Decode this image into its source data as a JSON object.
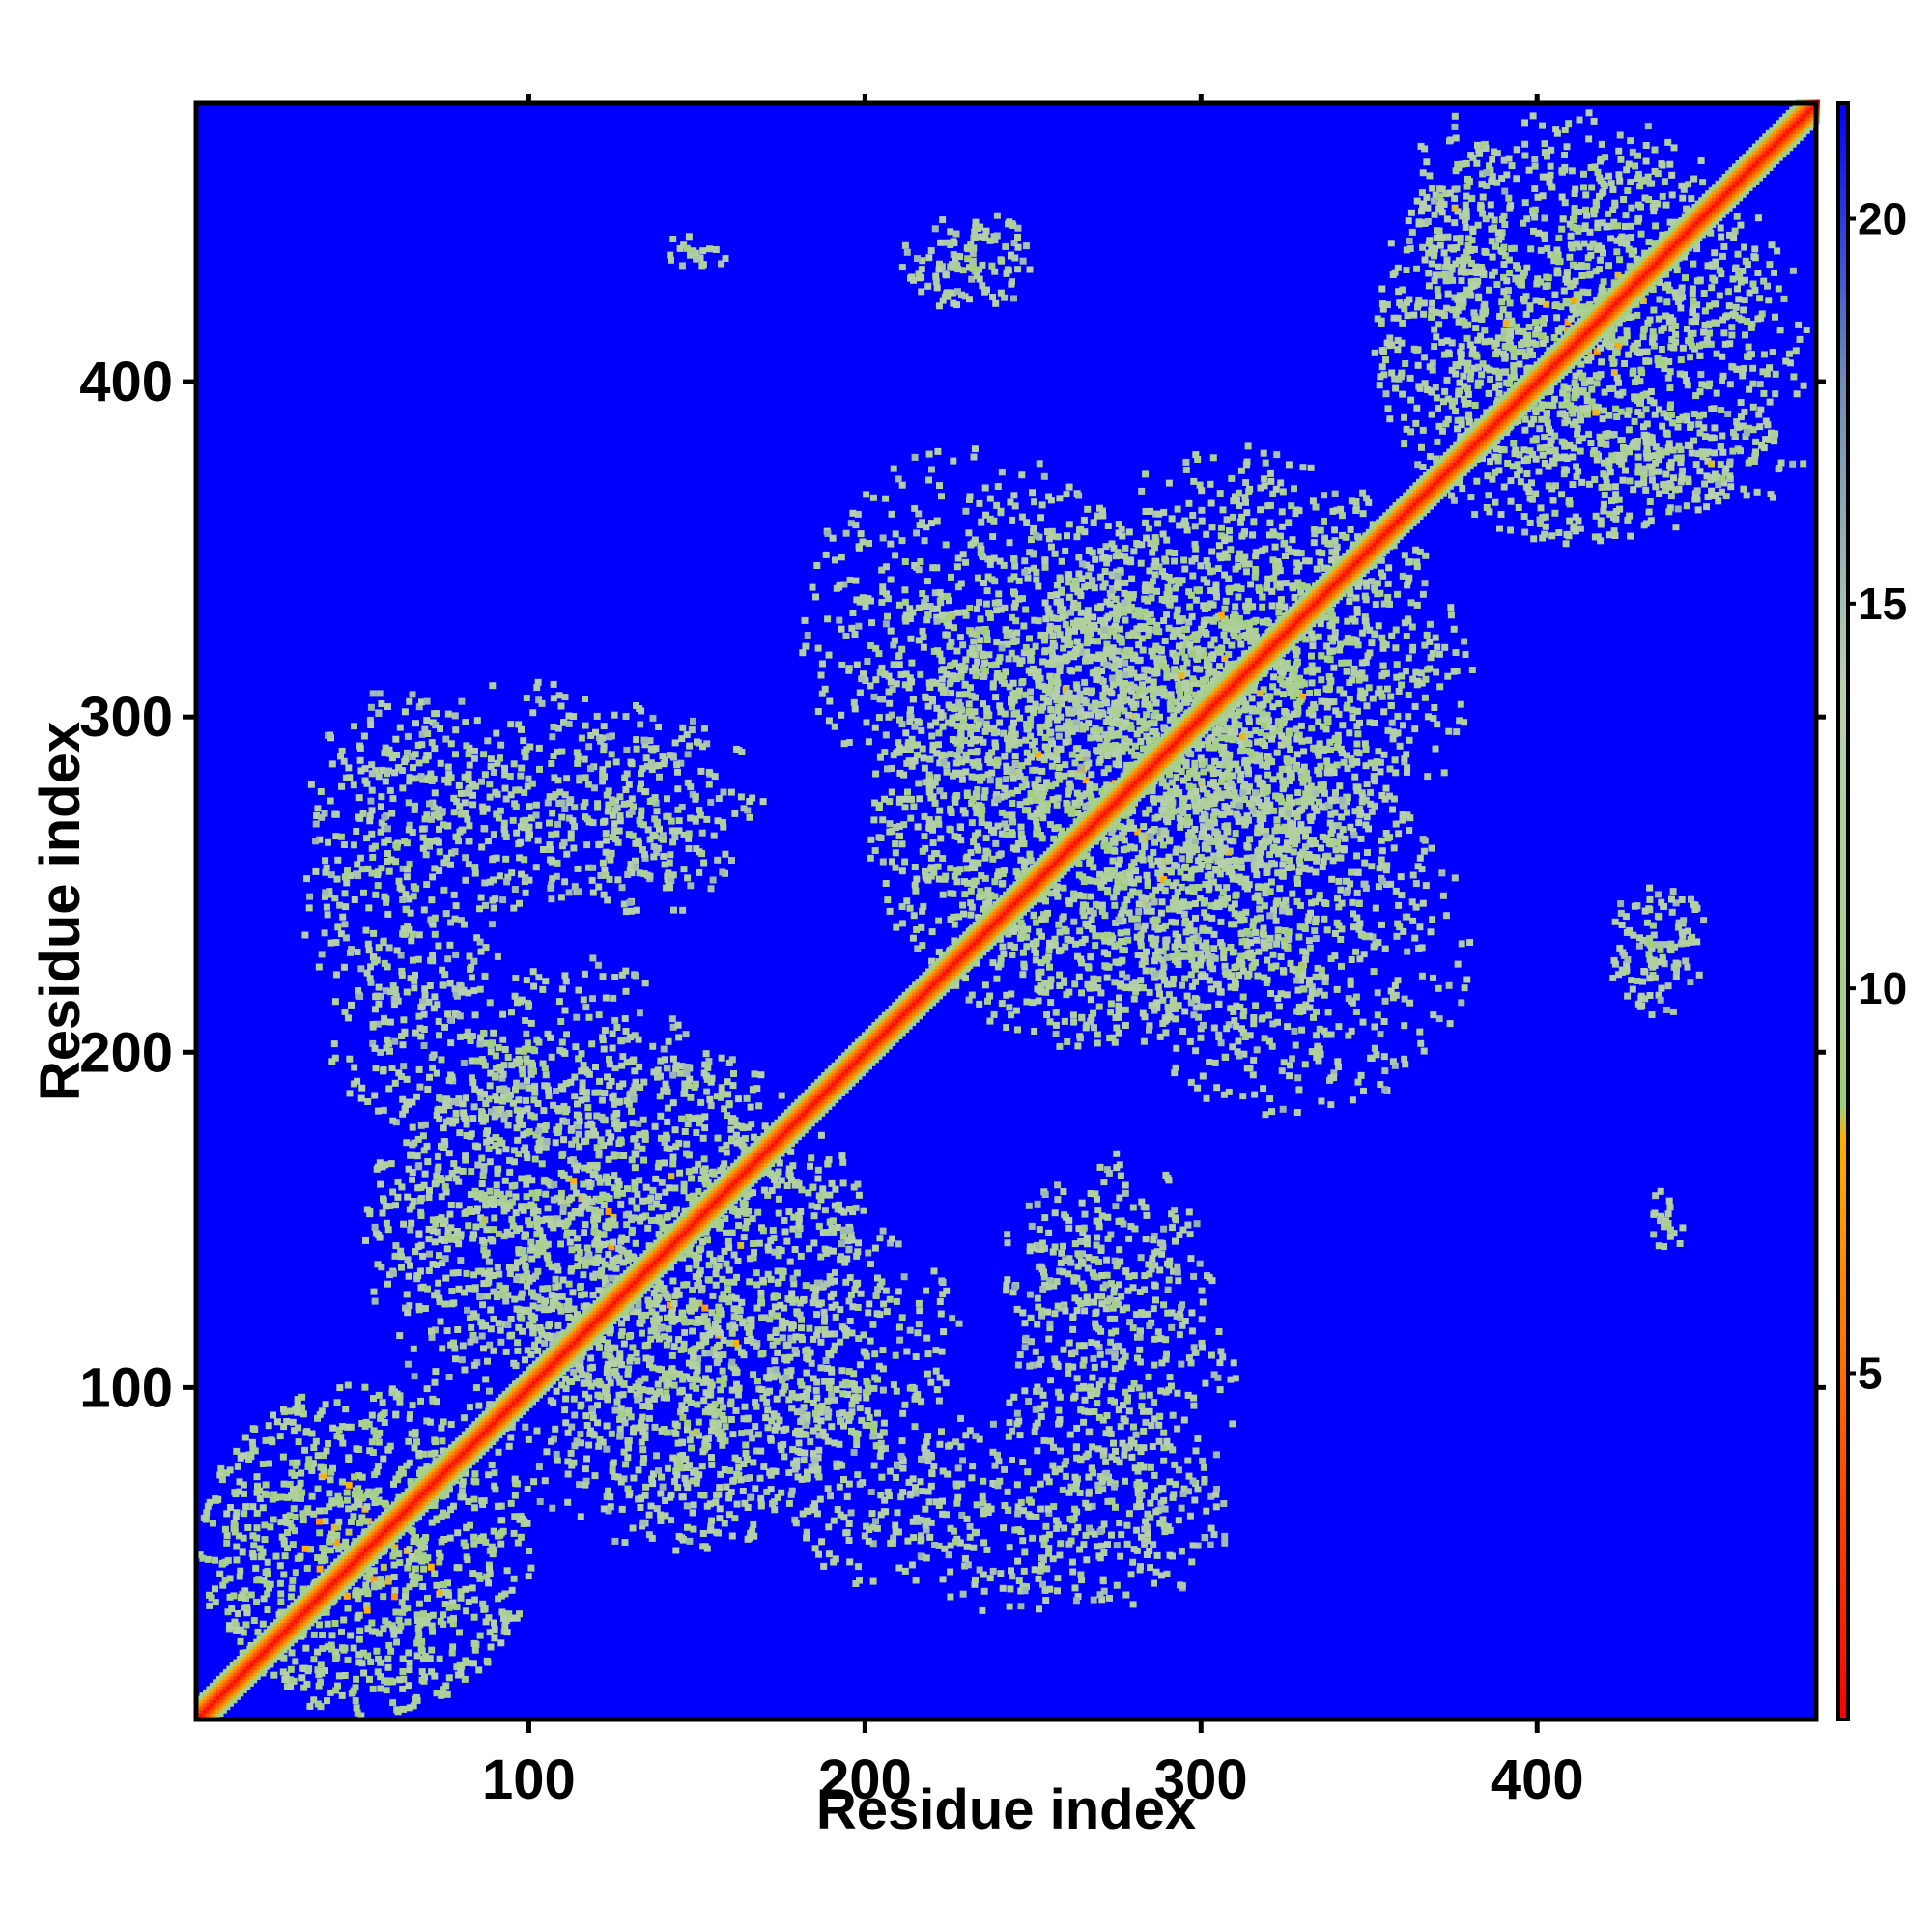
{
  "chart_data": {
    "type": "heatmap",
    "title": "",
    "xlabel": "Residue index",
    "ylabel": "Residue index",
    "xlim": [
      1,
      483
    ],
    "ylim": [
      1,
      483
    ],
    "x_ticks": [
      100,
      200,
      300,
      400
    ],
    "y_ticks": [
      100,
      200,
      300,
      400
    ],
    "colorbar": {
      "min": 0.5,
      "max": 21.5,
      "ticks": [
        5,
        10,
        15,
        20
      ],
      "colors": [
        {
          "value": 0.5,
          "color": "#ff0000"
        },
        {
          "value": 5,
          "color": "#ff6a00"
        },
        {
          "value": 8,
          "color": "#ffb000"
        },
        {
          "value": 8.5,
          "color": "#9fcf7a"
        },
        {
          "value": 14,
          "color": "#b8d0b0"
        },
        {
          "value": 18,
          "color": "#6f8bb8"
        },
        {
          "value": 21.5,
          "color": "#0000ff"
        }
      ]
    },
    "background_color": "#0000ff",
    "values_description_units": "distance",
    "symmetric": true,
    "diagonal_value": 1,
    "contact_regions": [
      {
        "x": [
          1,
          100
        ],
        "y": [
          1,
          100
        ],
        "value": 10
      },
      {
        "x": [
          50,
          200
        ],
        "y": [
          100,
          200
        ],
        "value": 11
      },
      {
        "x": [
          90,
          200
        ],
        "y": [
          50,
          130
        ],
        "value": 12
      },
      {
        "x": [
          170,
          230
        ],
        "y": [
          40,
          150
        ],
        "value": 12
      },
      {
        "x": [
          240,
          310
        ],
        "y": [
          50,
          150
        ],
        "value": 12
      },
      {
        "x": [
          200,
          330
        ],
        "y": [
          200,
          360
        ],
        "value": 11
      },
      {
        "x": [
          250,
          380
        ],
        "y": [
          250,
          370
        ],
        "value": 11
      },
      {
        "x": [
          270,
          380
        ],
        "y": [
          180,
          280
        ],
        "value": 12
      },
      {
        "x": [
          350,
          470
        ],
        "y": [
          350,
          480
        ],
        "value": 11
      },
      {
        "x": [
          420,
          450
        ],
        "y": [
          210,
          250
        ],
        "value": 12
      },
      {
        "x": [
          430,
          445
        ],
        "y": [
          140,
          160
        ],
        "value": 12
      },
      {
        "x": [
          210,
          250
        ],
        "y": [
          420,
          450
        ],
        "value": 12
      },
      {
        "x": [
          140,
          155
        ],
        "y": [
          430,
          445
        ],
        "value": 12
      },
      {
        "x": [
          30,
          90
        ],
        "y": [
          200,
          310
        ],
        "value": 12
      },
      {
        "x": [
          100,
          170
        ],
        "y": [
          240,
          300
        ],
        "value": 12
      },
      {
        "x": [
          360,
          390
        ],
        "y": [
          420,
          480
        ],
        "value": 12
      }
    ]
  }
}
